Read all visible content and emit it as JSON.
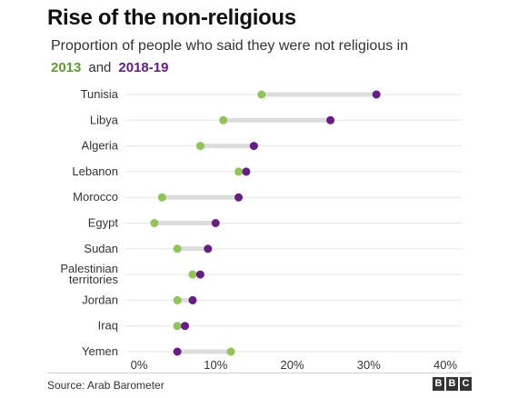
{
  "header": {
    "title": "Rise of the non-religious",
    "subtitle": "Proportion of people who said they were not religious in",
    "legend_2013": "2013",
    "legend_and": "and",
    "legend_2018": "2018-19"
  },
  "footer": {
    "source": "Source: Arab Barometer",
    "logo_letters": [
      "B",
      "B",
      "C"
    ]
  },
  "colors": {
    "series_2013": "#8dc653",
    "series_2018": "#6a1b8a",
    "connector": "#dcdcdc",
    "gridline": "#e6e6e6"
  },
  "chart_data": {
    "type": "scatter",
    "subtype": "dumbbell",
    "categories": [
      "Tunisia",
      "Libya",
      "Algeria",
      "Lebanon",
      "Morocco",
      "Egypt",
      "Sudan",
      "Palestinian territories",
      "Jordan",
      "Iraq",
      "Yemen"
    ],
    "category_labels": [
      [
        "Tunisia"
      ],
      [
        "Libya"
      ],
      [
        "Algeria"
      ],
      [
        "Lebanon"
      ],
      [
        "Morocco"
      ],
      [
        "Egypt"
      ],
      [
        "Sudan"
      ],
      [
        "Palestinian",
        "territories"
      ],
      [
        "Jordan"
      ],
      [
        "Iraq"
      ],
      [
        "Yemen"
      ]
    ],
    "series": [
      {
        "name": "2013",
        "values": [
          16,
          11,
          8,
          13,
          3,
          2,
          5,
          7,
          5,
          5,
          12
        ]
      },
      {
        "name": "2018-19",
        "values": [
          31,
          25,
          15,
          14,
          13,
          10,
          9,
          8,
          7,
          6,
          5
        ]
      }
    ],
    "xlim": [
      0,
      40
    ],
    "xticks": [
      0,
      10,
      20,
      30,
      40
    ],
    "xtick_labels": [
      "0%",
      "10%",
      "20%",
      "30%",
      "40%"
    ],
    "grid": true,
    "legend": "top-left"
  }
}
